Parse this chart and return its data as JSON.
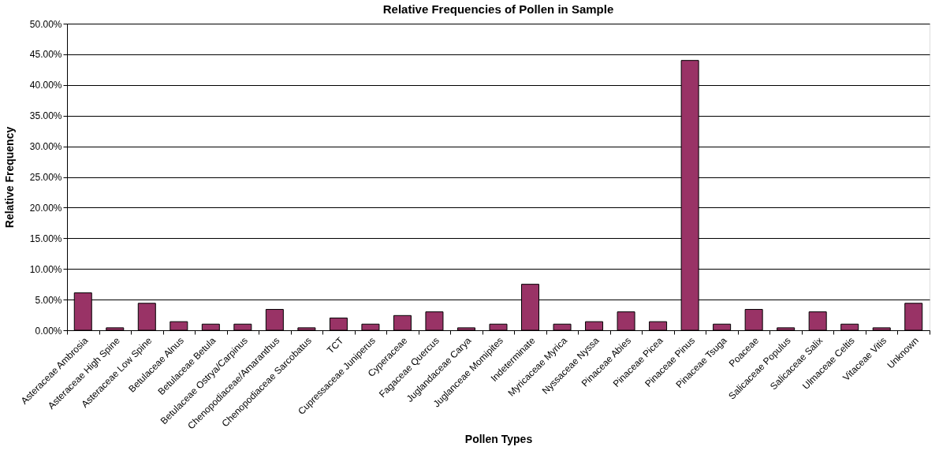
{
  "chart_data": {
    "type": "bar",
    "title": "Relative Frequencies of Pollen in Sample",
    "xlabel": "Pollen Types",
    "ylabel": "Relative Frequency",
    "categories": [
      "Asteraceae Ambrosia",
      "Asteraceae High Spine",
      "Asteraceae Low Spine",
      "Betulaceae Alnus",
      "Betulaceae Betula",
      "Betulaceae Ostrya/Carpinus",
      "Chenopodiaceae/Amaranthus",
      "Chenopodiaceae Sarcobatus",
      "TCT",
      "Cupressaceae Juniperus",
      "Cyperaceae",
      "Fagaceae Quercus",
      "Juglandaceae Carya",
      "Juglanceae Momipites",
      "Indeterminate",
      "Myricaceae Myrica",
      "Nyssaceae Nyssa",
      "Pinaceae Abies",
      "Pinaceae Picea",
      "Pinaceae Pinus",
      "Pinaceae Tsuga",
      "Poaceae",
      "Salicaceae Populus",
      "Salicaceae Salix",
      "Ulmaceae Celtis",
      "Vitaceae Vitis",
      "Unknown"
    ],
    "values": [
      6.1,
      0.4,
      4.4,
      1.4,
      1.0,
      1.0,
      3.4,
      0.4,
      2.0,
      1.0,
      2.4,
      3.0,
      0.4,
      1.0,
      7.5,
      1.0,
      1.4,
      3.0,
      1.4,
      44.0,
      1.0,
      3.4,
      0.4,
      3.0,
      1.0,
      0.4,
      4.4
    ],
    "color": "#993366",
    "ylim": [
      0,
      50
    ],
    "yticks": [
      {
        "value": 0,
        "label": "0.00%"
      },
      {
        "value": 5,
        "label": "5.00%"
      },
      {
        "value": 10,
        "label": "10.00%"
      },
      {
        "value": 15,
        "label": "15.00%"
      },
      {
        "value": 20,
        "label": "20.00%"
      },
      {
        "value": 25,
        "label": "25.00%"
      },
      {
        "value": 30,
        "label": "30.00%"
      },
      {
        "value": 35,
        "label": "35.00%"
      },
      {
        "value": 40,
        "label": "40.00%"
      },
      {
        "value": 45,
        "label": "45.00%"
      },
      {
        "value": 50,
        "label": "50.00%"
      }
    ],
    "grid": "y"
  }
}
